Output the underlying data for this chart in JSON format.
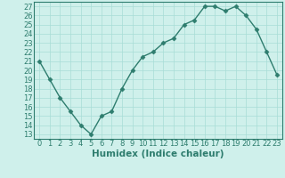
{
  "x": [
    0,
    1,
    2,
    3,
    4,
    5,
    6,
    7,
    8,
    9,
    10,
    11,
    12,
    13,
    14,
    15,
    16,
    17,
    18,
    19,
    20,
    21,
    22,
    23
  ],
  "y": [
    21,
    19,
    17,
    15.5,
    14,
    13,
    15,
    15.5,
    18,
    20,
    21.5,
    22,
    23,
    23.5,
    25,
    25.5,
    27,
    27,
    26.5,
    27,
    26,
    24.5,
    22,
    19.5
  ],
  "xlabel": "Humidex (Indice chaleur)",
  "xlim": [
    -0.5,
    23.5
  ],
  "ylim": [
    12.5,
    27.5
  ],
  "yticks": [
    13,
    14,
    15,
    16,
    17,
    18,
    19,
    20,
    21,
    22,
    23,
    24,
    25,
    26,
    27
  ],
  "xticks": [
    0,
    1,
    2,
    3,
    4,
    5,
    6,
    7,
    8,
    9,
    10,
    11,
    12,
    13,
    14,
    15,
    16,
    17,
    18,
    19,
    20,
    21,
    22,
    23
  ],
  "line_color": "#2e7d6e",
  "marker_color": "#2e7d6e",
  "bg_color": "#cff0eb",
  "grid_color": "#a8ddd6",
  "text_color": "#2e7d6e",
  "tick_fontsize": 6.0,
  "xlabel_fontsize": 7.5,
  "linewidth": 1.0,
  "markersize": 2.5
}
